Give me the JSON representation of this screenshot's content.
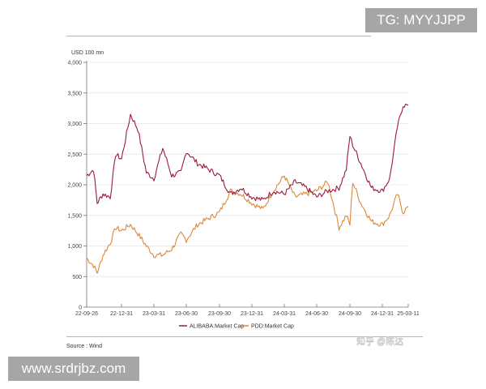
{
  "overlay": {
    "tg_badge": "TG: MYYJJPP",
    "site_badge": "www.srdrjbz.com",
    "watermark": "知乎 @陈达"
  },
  "chart_data": {
    "type": "line",
    "title": "",
    "ylabel": "USD 100 mn",
    "xlabel": "",
    "ylim": [
      0,
      4000
    ],
    "yticks": [
      0,
      500,
      1000,
      1500,
      2000,
      2500,
      3000,
      3500,
      4000
    ],
    "ytick_labels": [
      "0",
      "500",
      "1,000",
      "1,500",
      "2,000",
      "2,500",
      "3,000",
      "3,500",
      "4,000"
    ],
    "xtick_labels": [
      "22-09-26",
      "22-12-31",
      "23-03-31",
      "23-06-30",
      "23-09-30",
      "23-12-31",
      "24-03-31",
      "24-06-30",
      "24-09-30",
      "24-12-31",
      "25-03-11"
    ],
    "grid": true,
    "legend_position": "bottom",
    "source": "Source : Wind",
    "x": [
      "22-09-26",
      "22-10-15",
      "22-10-25",
      "22-11-10",
      "22-11-30",
      "22-12-15",
      "22-12-31",
      "23-01-25",
      "23-02-15",
      "23-03-10",
      "23-03-31",
      "23-04-25",
      "23-05-20",
      "23-06-15",
      "23-06-30",
      "23-07-31",
      "23-08-31",
      "23-09-30",
      "23-10-31",
      "23-11-30",
      "23-12-31",
      "24-01-31",
      "24-02-29",
      "24-03-31",
      "24-04-30",
      "24-05-31",
      "24-06-30",
      "24-07-31",
      "24-08-31",
      "24-09-20",
      "24-09-30",
      "24-10-08",
      "24-10-31",
      "24-11-30",
      "24-12-31",
      "25-01-20",
      "25-02-10",
      "25-02-25",
      "25-03-11"
    ],
    "series": [
      {
        "name": "ALIBABA:Market Cap",
        "color": "#9b1b3a",
        "values": [
          2150,
          2250,
          1700,
          1850,
          1800,
          2500,
          2420,
          3150,
          2900,
          2200,
          2100,
          2600,
          2150,
          2200,
          2550,
          2350,
          2250,
          2150,
          1850,
          1950,
          1800,
          1750,
          1900,
          1850,
          2050,
          1950,
          1800,
          1900,
          1950,
          2250,
          2800,
          2650,
          2350,
          1950,
          1900,
          2100,
          2950,
          3300,
          3300
        ]
      },
      {
        "name": "PDD:Market Cap",
        "color": "#d9893a",
        "values": [
          800,
          680,
          560,
          850,
          1050,
          1300,
          1250,
          1350,
          1200,
          1000,
          850,
          850,
          950,
          1200,
          1100,
          1350,
          1450,
          1550,
          1900,
          1850,
          1700,
          1600,
          1900,
          2150,
          1800,
          1850,
          1900,
          2050,
          1300,
          1500,
          1350,
          2050,
          1700,
          1400,
          1350,
          1500,
          1850,
          1550,
          1650
        ]
      }
    ]
  },
  "legend": {
    "alibaba": "ALIBABA:Market Cap",
    "pdd": "PDD:Market Cap"
  }
}
